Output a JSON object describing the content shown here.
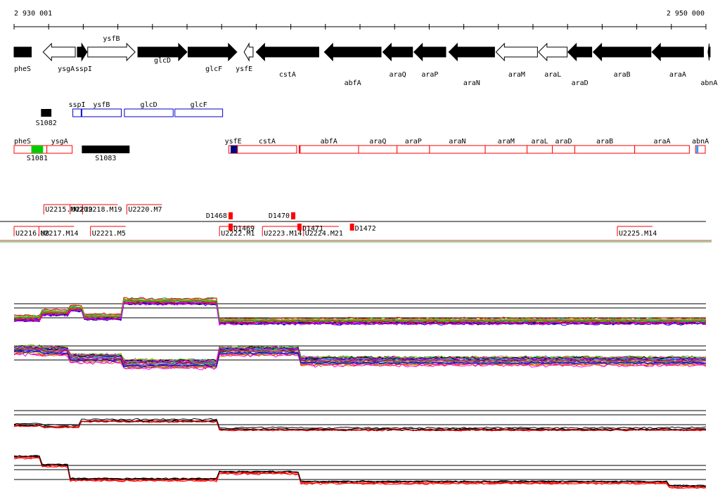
{
  "ruler": {
    "start_label": "2 930 001",
    "end_label": "2 950 000",
    "start": 2930001,
    "end": 2950000
  },
  "genes": [
    {
      "name": "pheS",
      "label_row": 0,
      "strand": "+",
      "fill": "black",
      "start": 2930001,
      "end": 2930500
    },
    {
      "name": "ysgA",
      "label_row": 1,
      "strand": "-",
      "fill": "white",
      "start": 2930840,
      "end": 2931770
    },
    {
      "name": "sspI",
      "label_row": 1,
      "strand": "+",
      "fill": "black",
      "start": 2931830,
      "end": 2932110
    },
    {
      "name": "ysfB",
      "label_row": -1,
      "strand": "+",
      "fill": "white",
      "start": 2932130,
      "end": 2933500
    },
    {
      "name": "glcD",
      "label_row": 0,
      "strand": "+",
      "fill": "black",
      "start": 2933580,
      "end": 2935000
    },
    {
      "name": "glcF",
      "label_row": 1,
      "strand": "+",
      "fill": "black",
      "start": 2935030,
      "end": 2936440
    },
    {
      "name": "ysfE",
      "label_row": 1,
      "strand": "-",
      "fill": "white",
      "start": 2936650,
      "end": 2936910
    },
    {
      "name": "cstA",
      "label_row": 2,
      "strand": "-",
      "fill": "black",
      "start": 2937000,
      "end": 2938810
    },
    {
      "name": "abfA",
      "label_row": 3,
      "strand": "-",
      "fill": "black",
      "start": 2938970,
      "end": 2940610
    },
    {
      "name": "araQ",
      "label_row": 2,
      "strand": "-",
      "fill": "black",
      "start": 2940660,
      "end": 2941520
    },
    {
      "name": "araP",
      "label_row": 2,
      "strand": "-",
      "fill": "black",
      "start": 2941560,
      "end": 2942480
    },
    {
      "name": "araN",
      "label_row": 3,
      "strand": "-",
      "fill": "black",
      "start": 2942570,
      "end": 2943890
    },
    {
      "name": "araM",
      "label_row": 2,
      "strand": "-",
      "fill": "white",
      "start": 2943930,
      "end": 2945130
    },
    {
      "name": "araL",
      "label_row": 2,
      "strand": "-",
      "fill": "white",
      "start": 2945160,
      "end": 2945990
    },
    {
      "name": "araD",
      "label_row": 3,
      "strand": "-",
      "fill": "black",
      "start": 2946010,
      "end": 2946700
    },
    {
      "name": "araB",
      "label_row": 2,
      "strand": "-",
      "fill": "black",
      "start": 2946740,
      "end": 2948410
    },
    {
      "name": "araA",
      "label_row": 2,
      "strand": "-",
      "fill": "black",
      "start": 2948440,
      "end": 2949930
    },
    {
      "name": "abnA",
      "label_row": 3,
      "strand": "-",
      "fill": "black",
      "start": 2950060,
      "end": 2950960
    }
  ],
  "blue_boxes": [
    {
      "name": "sspI",
      "start": 2931700,
      "end": 2931940
    },
    {
      "name": "ysfB",
      "start": 2931960,
      "end": 2933100
    },
    {
      "name": "glcD",
      "start": 2933190,
      "end": 2934600
    },
    {
      "name": "glcF",
      "start": 2934650,
      "end": 2936030
    }
  ],
  "red_boxes": [
    {
      "name": "pheS",
      "start": 2930001,
      "end": 2930950,
      "green": [
        2930500,
        2930840
      ]
    },
    {
      "name": "ysgA",
      "start": 2930950,
      "end": 2931680
    },
    {
      "name": "ysfE",
      "start": 2936210,
      "end": 2936460,
      "navy": [
        2936260,
        2936460
      ]
    },
    {
      "name": "cstA",
      "start": 2936460,
      "end": 2938170
    },
    {
      "name": "abfA",
      "start": 2938240,
      "end": 2939960,
      "tick": 2938240
    },
    {
      "name": "araQ",
      "start": 2939960,
      "end": 2941070
    },
    {
      "name": "araP",
      "start": 2941070,
      "end": 2942010
    },
    {
      "name": "araN",
      "start": 2942010,
      "end": 2943620
    },
    {
      "name": "araM",
      "start": 2943620,
      "end": 2944830
    },
    {
      "name": "araL",
      "start": 2944830,
      "end": 2945560
    },
    {
      "name": "araD",
      "start": 2945560,
      "end": 2946210
    },
    {
      "name": "araB",
      "start": 2946210,
      "end": 2947940
    },
    {
      "name": "araA",
      "start": 2947940,
      "end": 2949520
    },
    {
      "name": "abnA",
      "start": 2949700,
      "end": 2950990,
      "lightblue": [
        2949720,
        2949800
      ]
    }
  ],
  "s_features": [
    {
      "name": "S1082",
      "start": 2930780,
      "end": 2931080,
      "row": "blue",
      "label_pos": "below"
    },
    {
      "name": "S1081",
      "start": 2930500,
      "end": 2930840,
      "row": "red",
      "label_pos": "below",
      "green": true
    },
    {
      "name": "S1083",
      "start": 2931960,
      "end": 2933340,
      "row": "red",
      "label_pos": "below"
    }
  ],
  "transcripts": [
    {
      "name": "U2215.M02",
      "x": 2930860
    },
    {
      "name": "U2218.M19",
      "x": 2931980
    },
    {
      "name": "U2219",
      "x": 2931620
    },
    {
      "name": "U2220.M7",
      "x": 2933260
    },
    {
      "name": "U2216.M8",
      "x": 2930001
    },
    {
      "name": "U2217.M14",
      "x": 2930720
    },
    {
      "name": "U2221.M5",
      "x": 2932210
    },
    {
      "name": "U2222.M1",
      "x": 2935940
    },
    {
      "name": "U2223.M14",
      "x": 2937180
    },
    {
      "name": "U2224.M21",
      "x": 2938370
    },
    {
      "name": "U2225.M14",
      "x": 2947440
    }
  ],
  "d_markers": [
    {
      "name": "D1468",
      "x": 2936260,
      "label_side": "left"
    },
    {
      "name": "D1469",
      "x": 2936260,
      "label_side": "right"
    },
    {
      "name": "D1470",
      "x": 2938070,
      "label_side": "left"
    },
    {
      "name": "D1471",
      "x": 2938250,
      "label_side": "right"
    },
    {
      "name": "D1472",
      "x": 2939770,
      "label_side": "right"
    }
  ],
  "colors": {
    "gene_fill": "#000000",
    "box_blue": "#0000cc",
    "box_red": "#ff0000",
    "tile_green": "#00cc00",
    "navy": "#000080",
    "background": "#ffffff"
  },
  "profile_colors": [
    "#ff0000",
    "#00aa00",
    "#0000ff",
    "#ff00ff",
    "#00cccc",
    "#cc8800",
    "#8800cc",
    "#888888",
    "#aaaa00",
    "#000000"
  ],
  "bottom_profile_colors": [
    "#ff0000",
    "#000000"
  ]
}
